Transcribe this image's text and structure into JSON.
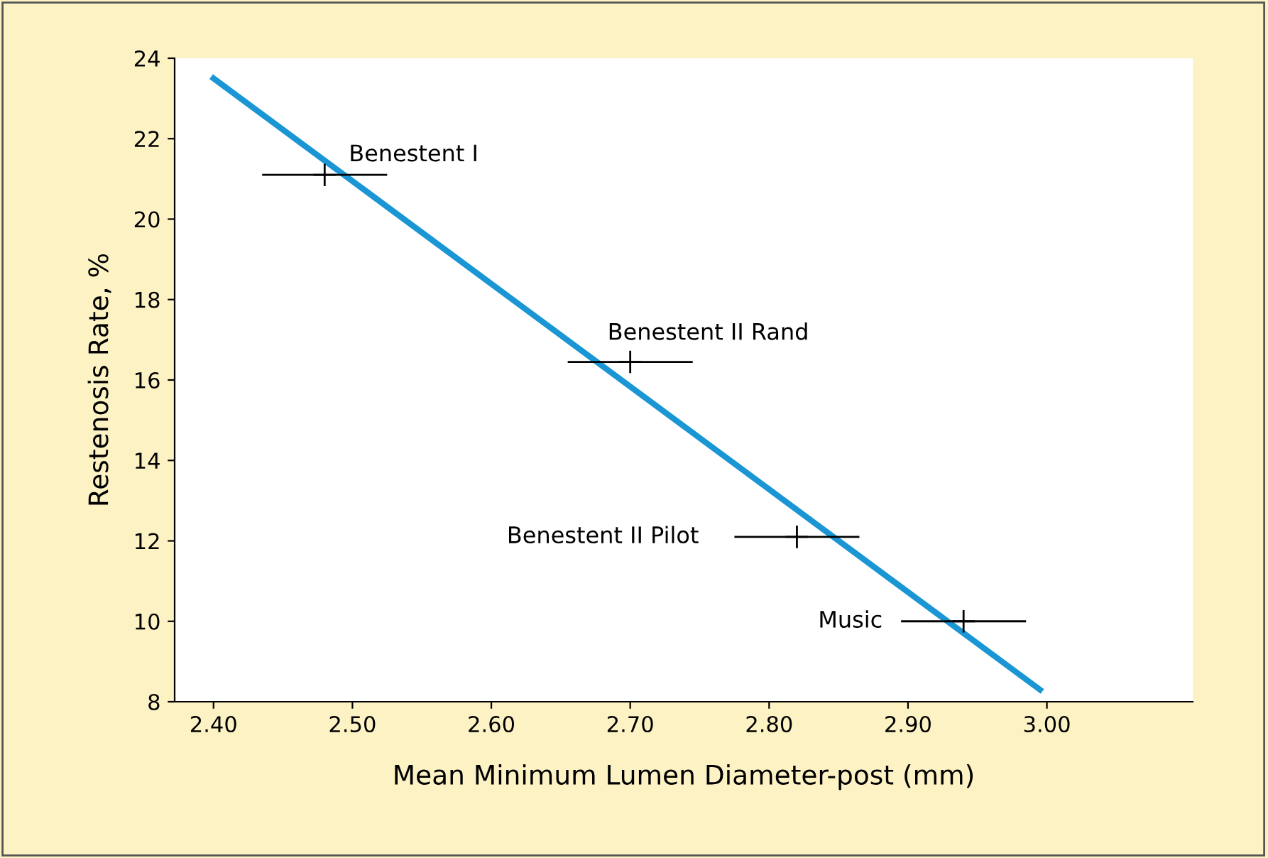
{
  "chart_data": {
    "type": "scatter",
    "xlabel": "Mean Minimum Lumen Diameter-post (mm)",
    "ylabel": "Restenosis Rate, %",
    "series": [
      {
        "color": "#000000",
        "x": [
          2.48,
          2.7,
          2.82,
          2.94
        ],
        "values": [
          21.1,
          16.45,
          12.1,
          10.0
        ],
        "xerrors": [
          0.045,
          0.045,
          0.045,
          0.045
        ],
        "marker": "cross"
      },
      {
        "type": "line",
        "color": "#1a96d4",
        "x": [
          2.4,
          2.995
        ],
        "values": [
          23.5,
          8.3
        ],
        "marker": "none",
        "line_style": "solid"
      }
    ],
    "annotations": [
      "Benestent I",
      "Benestent II Rand",
      "Benestent II Pilot",
      "Music"
    ],
    "xlim": [
      2.372,
      3.105
    ],
    "ylim": [
      8,
      24
    ],
    "xticks": [
      {
        "value": 2.4,
        "label": "2.40"
      },
      {
        "value": 2.5,
        "label": "2.50"
      },
      {
        "value": 2.6,
        "label": "2.60"
      },
      {
        "value": 2.7,
        "label": "2.70"
      },
      {
        "value": 2.8,
        "label": "2.80"
      },
      {
        "value": 2.9,
        "label": "2.90"
      },
      {
        "value": 3.0,
        "label": "3.00"
      }
    ],
    "yticks": [
      8,
      10,
      12,
      14,
      16,
      18,
      20,
      22,
      24
    ],
    "grid": false,
    "legend": false
  }
}
